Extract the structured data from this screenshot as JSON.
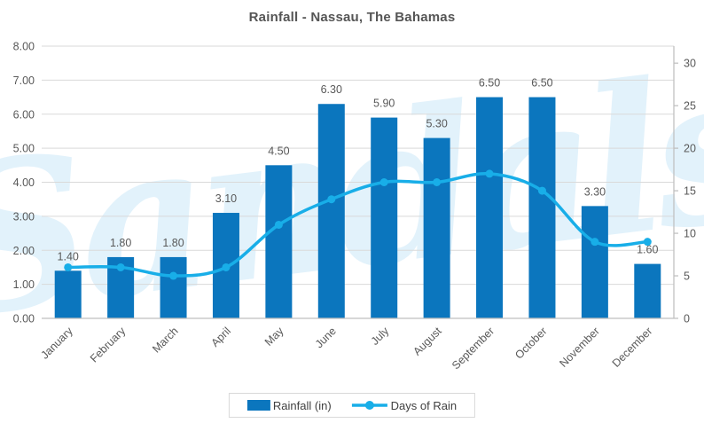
{
  "title": "Rainfall - Nassau, The Bahamas",
  "watermark": "Sandals",
  "colors": {
    "bar": "#0B76BE",
    "line": "#18AEE8",
    "title": "#555555",
    "axis_label": "#595959",
    "data_label": "#595959",
    "gridline": "#D9D9D9",
    "axis_line": "#BFBFBF",
    "legend_border": "#D9D9D9",
    "legend_text": "#404040",
    "watermark": "#E2F2FB"
  },
  "chart_data": {
    "type": "combo-bar-line",
    "title": "Rainfall - Nassau, The Bahamas",
    "categories": [
      "January",
      "February",
      "March",
      "April",
      "May",
      "June",
      "July",
      "August",
      "September",
      "October",
      "November",
      "December"
    ],
    "series": [
      {
        "name": "Rainfall (in)",
        "type": "bar",
        "axis": "left",
        "color": "#0B76BE",
        "values": [
          1.4,
          1.8,
          1.8,
          3.1,
          4.5,
          6.3,
          5.9,
          5.3,
          6.5,
          6.5,
          3.3,
          1.6
        ],
        "data_labels": [
          "1.40",
          "1.80",
          "1.80",
          "3.10",
          "4.50",
          "6.30",
          "5.90",
          "5.30",
          "6.50",
          "6.50",
          "3.30",
          "1.60"
        ]
      },
      {
        "name": "Days of Rain",
        "type": "line",
        "axis": "right",
        "color": "#18AEE8",
        "smooth": true,
        "marker": "circle",
        "values": [
          6,
          6,
          5,
          6,
          11,
          14,
          16,
          16,
          17,
          15,
          9,
          9
        ]
      }
    ],
    "left_axis": {
      "min": 0,
      "max": 8,
      "step": 1,
      "tick_labels": [
        "0.00",
        "1.00",
        "2.00",
        "3.00",
        "4.00",
        "5.00",
        "6.00",
        "7.00",
        "8.00"
      ]
    },
    "right_axis": {
      "min": 0,
      "max": 32,
      "tick_values": [
        0,
        5,
        10,
        15,
        20,
        25,
        30
      ],
      "tick_labels": [
        "0",
        "5",
        "10",
        "15",
        "20",
        "25",
        "30"
      ]
    },
    "grid": true,
    "legend_position": "bottom",
    "x_label_rotation_deg": -45
  },
  "legend": {
    "items": [
      {
        "label": "Rainfall (in)",
        "swatch": "bar"
      },
      {
        "label": "Days of Rain",
        "swatch": "line-marker"
      }
    ]
  }
}
